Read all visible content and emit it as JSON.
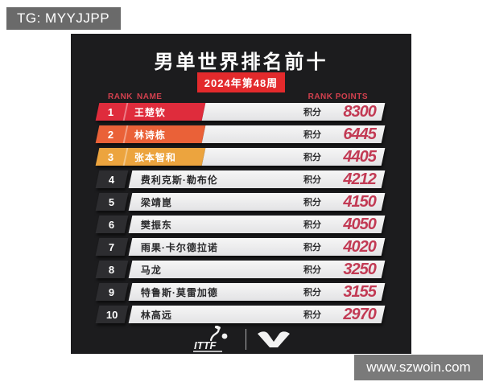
{
  "overlay": {
    "tg_label": "TG: MYYJJPP",
    "watermark": "www.szwoin.com"
  },
  "header": {
    "title": "男单世界排名前十",
    "week_badge": "2024年第48周"
  },
  "table": {
    "columns": {
      "rank": "RANK",
      "name": "NAME",
      "points": "RANK POINTS"
    },
    "points_label": "积分",
    "rows": [
      {
        "rank": "1",
        "name": "王楚钦",
        "points": "8300",
        "accent": "#df2c3c"
      },
      {
        "rank": "2",
        "name": "林诗栋",
        "points": "6445",
        "accent": "#ea6138"
      },
      {
        "rank": "3",
        "name": "张本智和",
        "points": "4405",
        "accent": "#eca43e"
      },
      {
        "rank": "4",
        "name": "费利克斯·勒布伦",
        "points": "4212",
        "accent": null
      },
      {
        "rank": "5",
        "name": "梁靖崑",
        "points": "4150",
        "accent": null
      },
      {
        "rank": "6",
        "name": "樊振东",
        "points": "4050",
        "accent": null
      },
      {
        "rank": "7",
        "name": "雨果·卡尔德拉诺",
        "points": "4020",
        "accent": null
      },
      {
        "rank": "8",
        "name": "马龙",
        "points": "3250",
        "accent": null
      },
      {
        "rank": "9",
        "name": "特鲁斯·莫雷加德",
        "points": "3155",
        "accent": null
      },
      {
        "rank": "10",
        "name": "林高远",
        "points": "2970",
        "accent": null
      }
    ]
  },
  "footer": {
    "ittf_logo_text": "ITTF"
  },
  "colors": {
    "card_bg": "#1c1c1e",
    "badge_red": "#e32a2c",
    "header_label_red": "#d2404e",
    "points_red": "#c23a54",
    "rank_default_bg": "#2d2d30",
    "row_bg_light": "#e9e9eb",
    "tag_gray": "#6a6a6a",
    "watermark_gray": "#7a7a7a"
  },
  "chart_data": {
    "type": "table",
    "title": "男单世界排名前十",
    "subtitle": "2024年第48周",
    "columns": [
      "RANK",
      "NAME",
      "RANK POINTS"
    ],
    "rows": [
      [
        1,
        "王楚钦",
        8300
      ],
      [
        2,
        "林诗栋",
        6445
      ],
      [
        3,
        "张本智和",
        4405
      ],
      [
        4,
        "费利克斯·勒布伦",
        4212
      ],
      [
        5,
        "梁靖崑",
        4150
      ],
      [
        6,
        "樊振东",
        4050
      ],
      [
        7,
        "雨果·卡尔德拉诺",
        4020
      ],
      [
        8,
        "马龙",
        3250
      ],
      [
        9,
        "特鲁斯·莫雷加德",
        3155
      ],
      [
        10,
        "林高远",
        2970
      ]
    ]
  }
}
